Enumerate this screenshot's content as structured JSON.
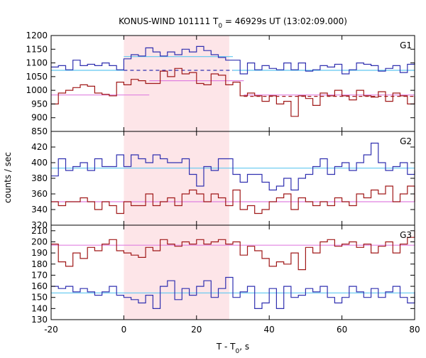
{
  "title": {
    "prefix": "KONUS-WIND 101111 T",
    "sub": "0",
    "suffix": " = 46929s UT (13:02:09.000)"
  },
  "chart_data": {
    "type": "line",
    "step": true,
    "x": [
      -20,
      -18,
      -16,
      -14,
      -12,
      -10,
      -8,
      -6,
      -4,
      -2,
      0,
      2,
      4,
      6,
      8,
      10,
      12,
      14,
      16,
      18,
      20,
      22,
      24,
      26,
      28,
      30,
      32,
      34,
      36,
      38,
      40,
      42,
      44,
      46,
      48,
      50,
      52,
      54,
      56,
      58,
      60,
      62,
      64,
      66,
      68,
      70,
      72,
      74,
      76,
      78,
      80
    ],
    "xlim": [
      -20,
      80
    ],
    "xticks": [
      -20,
      0,
      20,
      40,
      60,
      80
    ],
    "xlabel": {
      "prefix": "T - T",
      "sub": "0",
      "suffix": ", s"
    },
    "ylabel": "counts / sec",
    "highlight_interval": [
      0,
      29
    ],
    "colors": {
      "blue": "#3030b0",
      "red": "#a01818",
      "cyan": "#60c8f0",
      "magenta": "#e080e0",
      "shade": "#fde5e8"
    },
    "panels": [
      {
        "label": "G1",
        "ylim": [
          850,
          1200
        ],
        "yticks": [
          850,
          900,
          950,
          1000,
          1050,
          1100,
          1150,
          1200
        ],
        "series": [
          {
            "color": "blue",
            "values": [
              1085,
              1090,
              1075,
              1110,
              1090,
              1095,
              1090,
              1100,
              1090,
              1075,
              1115,
              1130,
              1125,
              1155,
              1140,
              1125,
              1140,
              1130,
              1150,
              1140,
              1160,
              1145,
              1130,
              1120,
              1110,
              1110,
              1060,
              1100,
              1075,
              1090,
              1080,
              1075,
              1100,
              1075,
              1100,
              1070,
              1075,
              1090,
              1085,
              1095,
              1060,
              1075,
              1100,
              1095,
              1090,
              1070,
              1080,
              1090,
              1065,
              1095,
              1100
            ]
          },
          {
            "color": "red",
            "values": [
              950,
              990,
              1000,
              1010,
              1020,
              1015,
              990,
              985,
              980,
              1030,
              1020,
              1040,
              1035,
              1025,
              1025,
              1070,
              1050,
              1080,
              1060,
              1065,
              1025,
              1020,
              1060,
              1055,
              1020,
              1030,
              980,
              990,
              980,
              960,
              980,
              950,
              960,
              905,
              980,
              970,
              945,
              990,
              980,
              1000,
              980,
              965,
              1000,
              980,
              975,
              995,
              960,
              990,
              980,
              950,
              980
            ]
          }
        ],
        "means": [
          {
            "color": "cyan",
            "segments": [
              {
                "x0": -20,
                "x1": 0,
                "y": 1073
              },
              {
                "x0": 0,
                "x1": 30,
                "y": 1123
              },
              {
                "x0": 30,
                "x1": 80,
                "y": 1073
              }
            ]
          },
          {
            "color": "magenta",
            "segments": [
              {
                "x0": -20,
                "x1": 7,
                "y": 983
              },
              {
                "x0": 7,
                "x1": 33,
                "y": 1035
              },
              {
                "x0": 33,
                "x1": 80,
                "y": 983
              }
            ]
          }
        ],
        "backgrounds": [
          {
            "color": "blue",
            "y": 1073,
            "x0": 0,
            "x1": 30
          },
          {
            "color": "red",
            "y": 978,
            "x0": 33,
            "x1": 80
          }
        ]
      },
      {
        "label": "G2",
        "ylim": [
          320,
          440
        ],
        "yticks": [
          320,
          340,
          360,
          380,
          400,
          420
        ],
        "series": [
          {
            "color": "blue",
            "values": [
              383,
              405,
              390,
              395,
              400,
              390,
              405,
              395,
              395,
              410,
              395,
              410,
              405,
              400,
              410,
              405,
              400,
              400,
              405,
              385,
              370,
              395,
              390,
              405,
              405,
              385,
              375,
              385,
              385,
              375,
              365,
              370,
              380,
              365,
              380,
              385,
              395,
              405,
              385,
              395,
              400,
              390,
              400,
              410,
              425,
              400,
              390,
              395,
              400,
              385,
              390
            ]
          },
          {
            "color": "red",
            "values": [
              350,
              345,
              350,
              350,
              355,
              350,
              340,
              350,
              345,
              335,
              350,
              345,
              345,
              360,
              345,
              350,
              355,
              345,
              360,
              365,
              360,
              350,
              360,
              355,
              345,
              365,
              340,
              345,
              335,
              340,
              350,
              355,
              360,
              340,
              355,
              350,
              345,
              350,
              345,
              355,
              350,
              345,
              360,
              355,
              365,
              360,
              370,
              350,
              360,
              370,
              350
            ]
          }
        ],
        "means": [
          {
            "color": "cyan",
            "segments": [
              {
                "x0": -20,
                "x1": 80,
                "y": 393
              }
            ]
          },
          {
            "color": "magenta",
            "segments": [
              {
                "x0": -20,
                "x1": 80,
                "y": 350
              }
            ]
          }
        ],
        "backgrounds": []
      },
      {
        "label": "G3",
        "ylim": [
          130,
          215
        ],
        "yticks": [
          130,
          140,
          150,
          160,
          170,
          180,
          190,
          200,
          210
        ],
        "series": [
          {
            "color": "blue",
            "values": [
              160,
              158,
              160,
              155,
              158,
              155,
              152,
              155,
              160,
              152,
              150,
              148,
              145,
              152,
              140,
              160,
              165,
              148,
              158,
              152,
              160,
              165,
              150,
              158,
              168,
              150,
              155,
              160,
              140,
              145,
              158,
              140,
              160,
              150,
              152,
              158,
              155,
              160,
              150,
              145,
              150,
              160,
              155,
              150,
              158,
              150,
              155,
              160,
              150,
              145,
              155
            ]
          },
          {
            "color": "red",
            "values": [
              198,
              182,
              178,
              190,
              185,
              195,
              192,
              198,
              202,
              192,
              190,
              188,
              186,
              195,
              192,
              202,
              198,
              196,
              200,
              198,
              202,
              198,
              200,
              202,
              198,
              200,
              188,
              196,
              192,
              185,
              178,
              182,
              180,
              190,
              175,
              195,
              190,
              200,
              202,
              196,
              198,
              200,
              195,
              198,
              190,
              196,
              200,
              190,
              198,
              204,
              210
            ]
          }
        ],
        "means": [
          {
            "color": "cyan",
            "segments": [
              {
                "x0": -20,
                "x1": 80,
                "y": 154
              }
            ]
          },
          {
            "color": "magenta",
            "segments": [
              {
                "x0": -20,
                "x1": 80,
                "y": 197
              }
            ]
          }
        ],
        "backgrounds": []
      }
    ]
  }
}
